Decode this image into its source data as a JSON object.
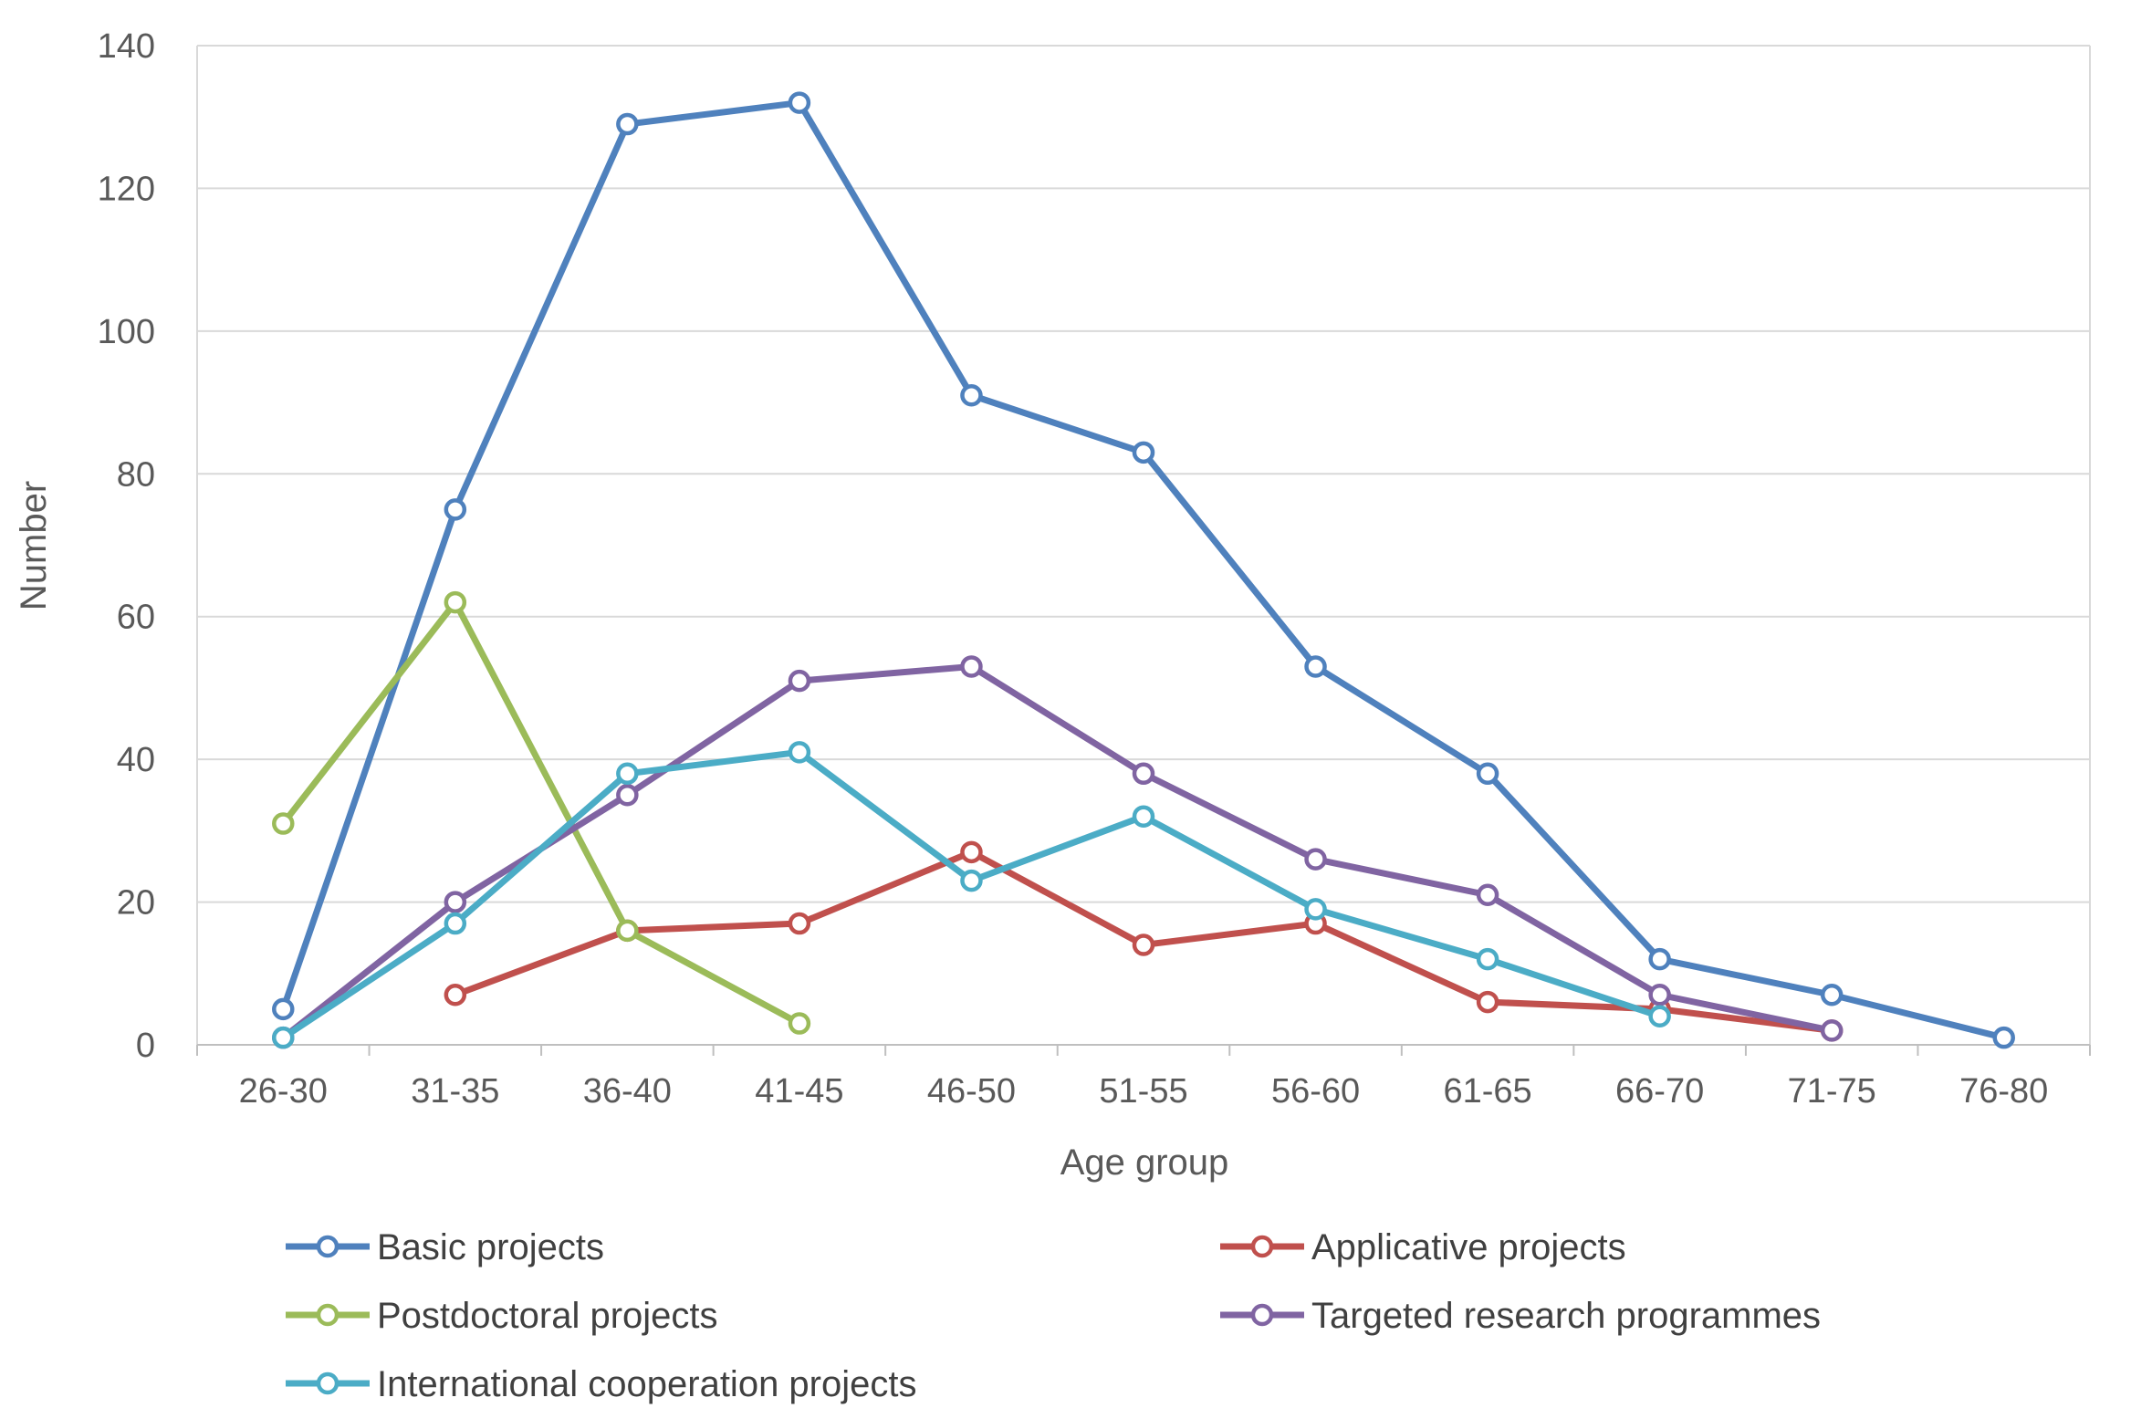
{
  "chart_data": {
    "type": "line",
    "xlabel": "Age group",
    "ylabel": "Number",
    "categories": [
      "26-30",
      "31-35",
      "36-40",
      "41-45",
      "46-50",
      "51-55",
      "56-60",
      "61-65",
      "66-70",
      "71-75",
      "76-80"
    ],
    "ylim": [
      0,
      140
    ],
    "yticks": [
      0,
      20,
      40,
      60,
      80,
      100,
      120,
      140
    ],
    "grid": true,
    "legend_position": "bottom",
    "series": [
      {
        "name": "Basic projects",
        "color": "#4f81bd",
        "values": [
          5,
          75,
          129,
          132,
          91,
          83,
          53,
          38,
          12,
          7,
          1
        ]
      },
      {
        "name": "Applicative projects",
        "color": "#c0504d",
        "values": [
          null,
          7,
          16,
          17,
          27,
          14,
          17,
          6,
          5,
          2,
          null
        ]
      },
      {
        "name": "Postdoctoral projects",
        "color": "#9bbb59",
        "values": [
          31,
          62,
          16,
          3,
          null,
          null,
          null,
          null,
          null,
          null,
          null
        ]
      },
      {
        "name": "Targeted research programmes",
        "color": "#8064a2",
        "values": [
          1,
          20,
          35,
          51,
          53,
          38,
          26,
          21,
          7,
          2,
          null
        ]
      },
      {
        "name": "International cooperation projects",
        "color": "#4bacc6",
        "values": [
          1,
          17,
          38,
          41,
          23,
          32,
          19,
          12,
          4,
          null,
          null
        ]
      }
    ]
  }
}
